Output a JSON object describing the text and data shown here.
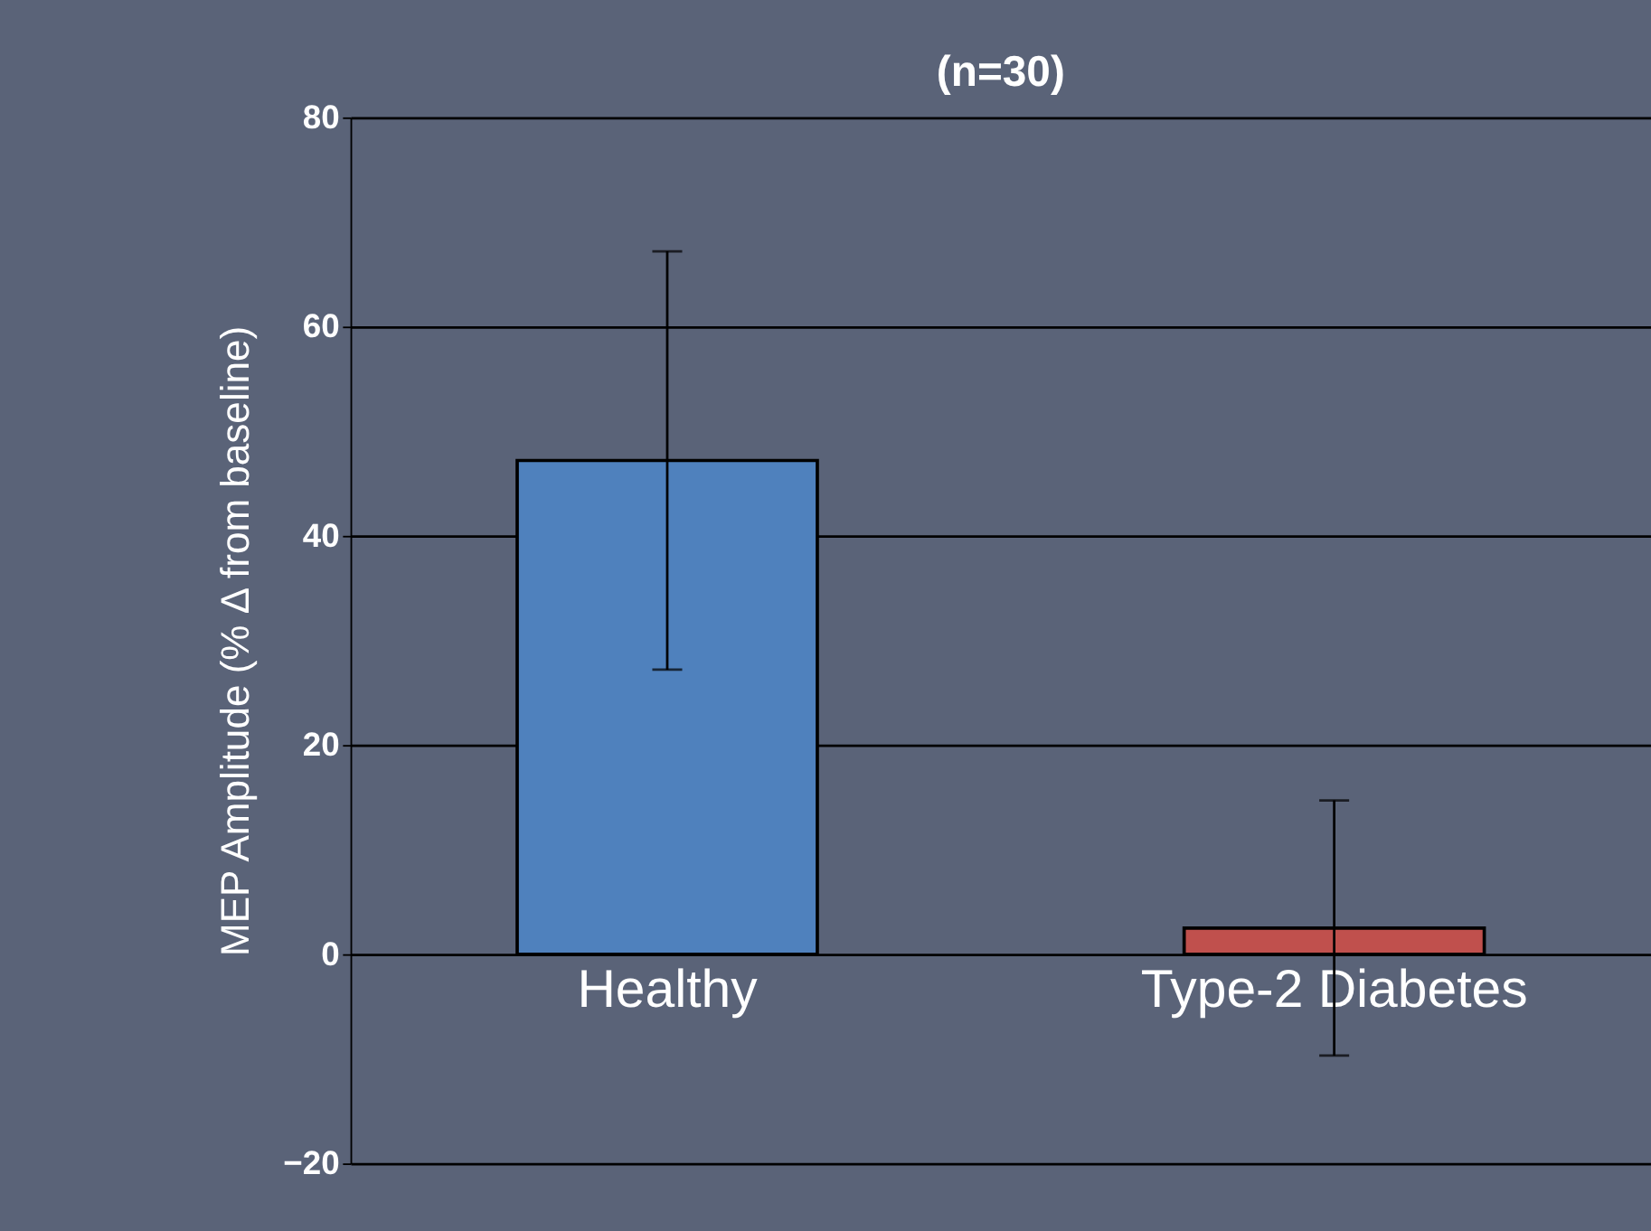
{
  "chart_data": {
    "type": "bar",
    "title": "(n=30)",
    "ylabel": "MEP Amplitude (% Δ from baseline)",
    "categories": [
      "Healthy",
      "Type-2 Diabetes"
    ],
    "values": [
      47.2,
      2.5
    ],
    "colors": [
      "#4f81bd",
      "#c0504d"
    ],
    "errors": [
      20,
      12.2
    ],
    "ylim": [
      -20,
      80
    ],
    "yticks": [
      -20,
      0,
      20,
      40,
      60,
      80
    ],
    "grid": "y"
  }
}
